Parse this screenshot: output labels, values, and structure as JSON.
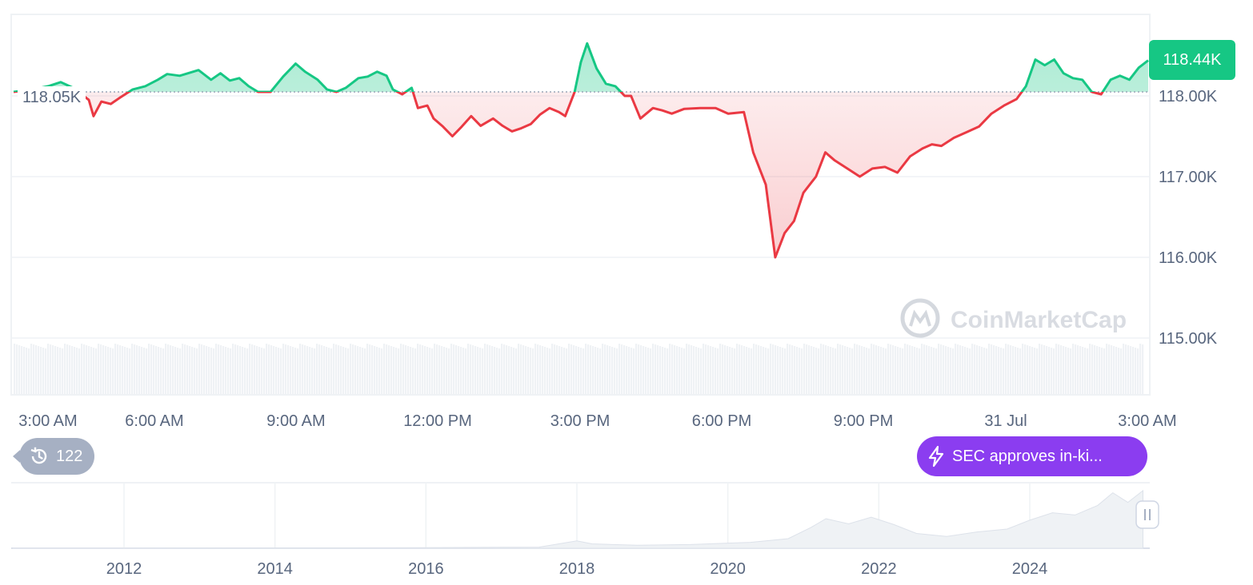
{
  "chart_data": [
    {
      "type": "line",
      "title": "",
      "reference_price": 118.05,
      "reference_label": "118.05K",
      "current_label": "118.44K",
      "ylim": [
        115.0,
        118.6
      ],
      "y_ticks": [
        {
          "value": 118.0,
          "label": "118.00K"
        },
        {
          "value": 117.0,
          "label": "117.00K"
        },
        {
          "value": 116.0,
          "label": "116.00K"
        },
        {
          "value": 115.0,
          "label": "115.00K"
        }
      ],
      "x_ticks": [
        "3:00 AM",
        "6:00 AM",
        "9:00 AM",
        "12:00 PM",
        "3:00 PM",
        "6:00 PM",
        "9:00 PM",
        "31 Jul",
        "3:00 AM"
      ],
      "x_hours": [
        0,
        24
      ],
      "points": [
        [
          0.0,
          118.05
        ],
        [
          0.6,
          118.08
        ],
        [
          1.1,
          118.12
        ],
        [
          1.5,
          118.17
        ],
        [
          1.9,
          118.1
        ],
        [
          2.1,
          118.04
        ],
        [
          2.4,
          117.95
        ],
        [
          2.55,
          117.75
        ],
        [
          2.8,
          117.93
        ],
        [
          3.1,
          117.9
        ],
        [
          3.4,
          117.98
        ],
        [
          3.8,
          118.08
        ],
        [
          4.2,
          118.12
        ],
        [
          4.6,
          118.2
        ],
        [
          4.9,
          118.27
        ],
        [
          5.3,
          118.25
        ],
        [
          5.9,
          118.32
        ],
        [
          6.3,
          118.2
        ],
        [
          6.6,
          118.28
        ],
        [
          6.9,
          118.19
        ],
        [
          7.2,
          118.22
        ],
        [
          7.5,
          118.12
        ],
        [
          7.8,
          118.05
        ],
        [
          8.2,
          118.05
        ],
        [
          8.6,
          118.24
        ],
        [
          9.0,
          118.4
        ],
        [
          9.3,
          118.3
        ],
        [
          9.7,
          118.2
        ],
        [
          10.0,
          118.08
        ],
        [
          10.3,
          118.05
        ],
        [
          10.6,
          118.1
        ],
        [
          11.0,
          118.22
        ],
        [
          11.3,
          118.24
        ],
        [
          11.6,
          118.3
        ],
        [
          11.9,
          118.25
        ],
        [
          12.1,
          118.08
        ],
        [
          12.4,
          118.02
        ],
        [
          12.7,
          118.1
        ],
        [
          12.9,
          117.85
        ],
        [
          13.2,
          117.88
        ],
        [
          13.4,
          117.72
        ],
        [
          13.7,
          117.62
        ],
        [
          14.0,
          117.5
        ],
        [
          14.3,
          117.62
        ],
        [
          14.6,
          117.75
        ],
        [
          14.9,
          117.63
        ],
        [
          15.3,
          117.72
        ],
        [
          15.6,
          117.63
        ],
        [
          15.9,
          117.56
        ],
        [
          16.2,
          117.6
        ],
        [
          16.5,
          117.65
        ],
        [
          16.8,
          117.77
        ],
        [
          17.1,
          117.85
        ],
        [
          17.4,
          117.8
        ],
        [
          17.6,
          117.75
        ],
        [
          17.9,
          118.05
        ],
        [
          18.1,
          118.42
        ],
        [
          18.3,
          118.65
        ],
        [
          18.6,
          118.34
        ],
        [
          18.9,
          118.15
        ],
        [
          19.2,
          118.12
        ],
        [
          19.5,
          118.0
        ],
        [
          19.7,
          118.0
        ],
        [
          20.0,
          117.72
        ],
        [
          20.4,
          117.85
        ],
        [
          20.7,
          117.82
        ],
        [
          21.0,
          117.78
        ],
        [
          21.4,
          117.84
        ],
        [
          21.9,
          117.85
        ],
        [
          22.4,
          117.85
        ],
        [
          22.8,
          117.78
        ],
        [
          23.3,
          117.8
        ],
        [
          23.6,
          117.3
        ],
        [
          24.0,
          116.9
        ],
        [
          24.3,
          116.0
        ],
        [
          24.6,
          116.3
        ],
        [
          24.9,
          116.45
        ],
        [
          25.2,
          116.8
        ],
        [
          25.6,
          117.0
        ],
        [
          25.9,
          117.3
        ],
        [
          26.2,
          117.2
        ],
        [
          26.6,
          117.1
        ],
        [
          27.0,
          117.0
        ],
        [
          27.4,
          117.1
        ],
        [
          27.8,
          117.12
        ],
        [
          28.2,
          117.05
        ],
        [
          28.6,
          117.25
        ],
        [
          29.0,
          117.35
        ],
        [
          29.3,
          117.4
        ],
        [
          29.6,
          117.38
        ],
        [
          30.0,
          117.48
        ],
        [
          30.4,
          117.55
        ],
        [
          30.8,
          117.62
        ],
        [
          31.2,
          117.78
        ],
        [
          31.6,
          117.88
        ],
        [
          32.0,
          117.96
        ],
        [
          32.3,
          118.12
        ],
        [
          32.6,
          118.45
        ],
        [
          32.9,
          118.38
        ],
        [
          33.2,
          118.45
        ],
        [
          33.5,
          118.28
        ],
        [
          33.8,
          118.22
        ],
        [
          34.1,
          118.2
        ],
        [
          34.4,
          118.05
        ],
        [
          34.7,
          118.02
        ],
        [
          35.0,
          118.2
        ],
        [
          35.3,
          118.25
        ],
        [
          35.6,
          118.2
        ],
        [
          35.9,
          118.35
        ],
        [
          36.2,
          118.44
        ]
      ],
      "volume": "uniform",
      "x_span": [
        0,
        36.2
      ]
    },
    {
      "type": "area",
      "x_ticks": [
        "2012",
        "2014",
        "2016",
        "2018",
        "2020",
        "2022",
        "2024"
      ],
      "points": [
        [
          2010.5,
          0.2
        ],
        [
          2012.0,
          0.3
        ],
        [
          2014.0,
          0.5
        ],
        [
          2016.0,
          0.8
        ],
        [
          2017.5,
          1.5
        ],
        [
          2018.0,
          10
        ],
        [
          2018.2,
          6
        ],
        [
          2018.8,
          4
        ],
        [
          2019.5,
          5
        ],
        [
          2020.3,
          8
        ],
        [
          2020.8,
          13
        ],
        [
          2021.1,
          28
        ],
        [
          2021.3,
          40
        ],
        [
          2021.6,
          33
        ],
        [
          2021.9,
          42
        ],
        [
          2022.2,
          32
        ],
        [
          2022.5,
          20
        ],
        [
          2022.9,
          16
        ],
        [
          2023.3,
          22
        ],
        [
          2023.7,
          26
        ],
        [
          2024.0,
          38
        ],
        [
          2024.3,
          48
        ],
        [
          2024.6,
          45
        ],
        [
          2024.9,
          58
        ],
        [
          2025.1,
          75
        ],
        [
          2025.3,
          62
        ],
        [
          2025.5,
          78
        ]
      ]
    }
  ],
  "watermark": "CoinMarketCap",
  "event_badge": {
    "label": "SEC approves in-ki...",
    "icon": "lightning-icon"
  },
  "history_badge": {
    "count": "122",
    "icon": "history-clock-icon"
  },
  "colors": {
    "up": "#16c784",
    "down": "#ea3943",
    "event": "#8b3df0",
    "badge": "#a6b0c3",
    "axis": "#58667e"
  }
}
